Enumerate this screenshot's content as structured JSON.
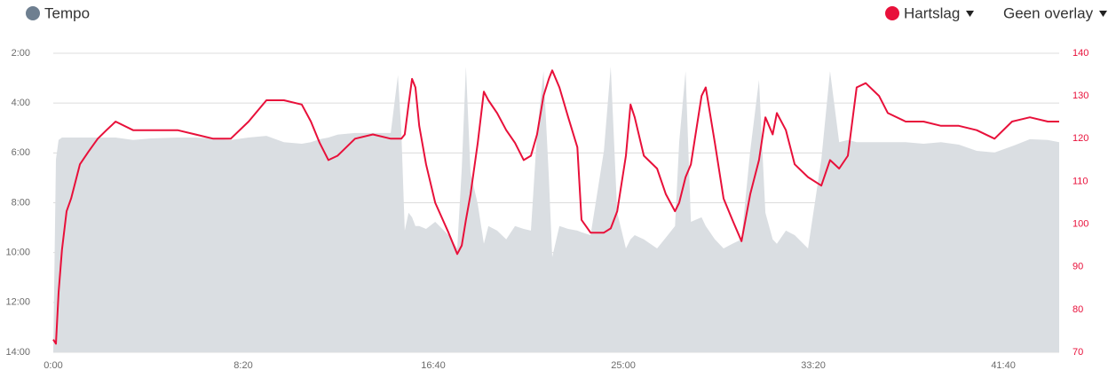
{
  "chart_data": {
    "type": "area-line",
    "x": [
      0,
      7,
      14,
      23,
      35,
      47,
      70,
      93,
      117,
      140,
      164,
      210,
      257,
      327,
      374,
      421,
      467,
      514,
      561,
      607,
      654,
      678,
      701,
      724,
      748,
      794,
      841,
      888,
      907,
      916,
      925,
      935,
      944,
      953,
      963,
      981,
      1005,
      1040,
      1063,
      1075,
      1086,
      1098,
      1117,
      1133,
      1145,
      1168,
      1192,
      1215,
      1238,
      1257,
      1273,
      1290,
      1304,
      1313,
      1332,
      1355,
      1379,
      1390,
      1414,
      1449,
      1467,
      1484,
      1507,
      1519,
      1530,
      1554,
      1589,
      1612,
      1636,
      1647,
      1664,
      1678,
      1706,
      1717,
      1741,
      1764,
      1787,
      1811,
      1834,
      1857,
      1874,
      1893,
      1904,
      1928,
      1951,
      1986,
      2021,
      2044,
      2068,
      2091,
      2114,
      2138,
      2173,
      2196,
      2243,
      2290,
      2336,
      2383,
      2430,
      2477,
      2523,
      2570,
      2617,
      2647
    ],
    "series": [
      {
        "name": "Tempo",
        "color": "#dadee2",
        "dot_color": "#6e7f90",
        "values": [
          840,
          376,
          329,
          323,
          323,
          323,
          323,
          323,
          323,
          323,
          323,
          329,
          325,
          323,
          323,
          325,
          329,
          323,
          319,
          334,
          338,
          334,
          327,
          323,
          316,
          312,
          312,
          312,
          173,
          312,
          547,
          504,
          515,
          536,
          536,
          543,
          526,
          558,
          590,
          398,
          152,
          408,
          483,
          579,
          536,
          547,
          568,
          536,
          543,
          547,
          312,
          163,
          419,
          611,
          536,
          543,
          547,
          551,
          558,
          355,
          152,
          504,
          590,
          568,
          558,
          568,
          590,
          564,
          536,
          334,
          163,
          526,
          515,
          536,
          568,
          590,
          579,
          568,
          355,
          184,
          504,
          568,
          579,
          547,
          558,
          590,
          376,
          163,
          334,
          329,
          334,
          334,
          334,
          334,
          334,
          338,
          334,
          340,
          355,
          359,
          344,
          327,
          329,
          334
        ]
      },
      {
        "name": "Hartslag",
        "color": "#e8103a",
        "axis": "y2",
        "values": [
          73,
          72,
          84,
          94,
          103,
          106,
          114,
          117,
          120,
          122,
          124,
          122,
          122,
          122,
          121,
          120,
          120,
          124,
          129,
          129,
          128,
          124,
          119,
          115,
          116,
          120,
          121,
          120,
          120,
          120,
          121,
          128,
          134,
          132,
          123,
          114,
          105,
          98,
          93,
          95,
          101,
          107,
          119,
          131,
          129,
          126,
          122,
          119,
          115,
          116,
          121,
          130,
          134,
          136,
          132,
          125,
          118,
          101,
          98,
          98,
          99,
          103,
          116,
          128,
          125,
          116,
          113,
          107,
          103,
          105,
          111,
          114,
          130,
          132,
          119,
          106,
          101,
          96,
          107,
          115,
          125,
          121,
          126,
          122,
          114,
          111,
          109,
          115,
          113,
          116,
          132,
          133,
          130,
          126,
          124,
          124,
          123,
          123,
          122,
          120,
          124,
          125,
          124,
          124
        ]
      }
    ],
    "overlay_menu": "Geen overlay",
    "xlim": [
      0,
      2647
    ],
    "xticks": [
      {
        "value": 0,
        "label": "0:00"
      },
      {
        "value": 500,
        "label": "8:20"
      },
      {
        "value": 1000,
        "label": "16:40"
      },
      {
        "value": 1500,
        "label": "25:00"
      },
      {
        "value": 2000,
        "label": "33:20"
      },
      {
        "value": 2500,
        "label": "41:40"
      }
    ],
    "ylim": [
      840,
      120
    ],
    "yticks": [
      {
        "value": 120,
        "label": "2:00"
      },
      {
        "value": 240,
        "label": "4:00"
      },
      {
        "value": 360,
        "label": "6:00"
      },
      {
        "value": 480,
        "label": "8:00"
      },
      {
        "value": 600,
        "label": "10:00"
      },
      {
        "value": 720,
        "label": "12:00"
      },
      {
        "value": 840,
        "label": "14:00"
      }
    ],
    "y2lim": [
      70,
      140
    ],
    "y2ticks": [
      70,
      80,
      90,
      100,
      110,
      120,
      130,
      140
    ],
    "grid": true
  }
}
